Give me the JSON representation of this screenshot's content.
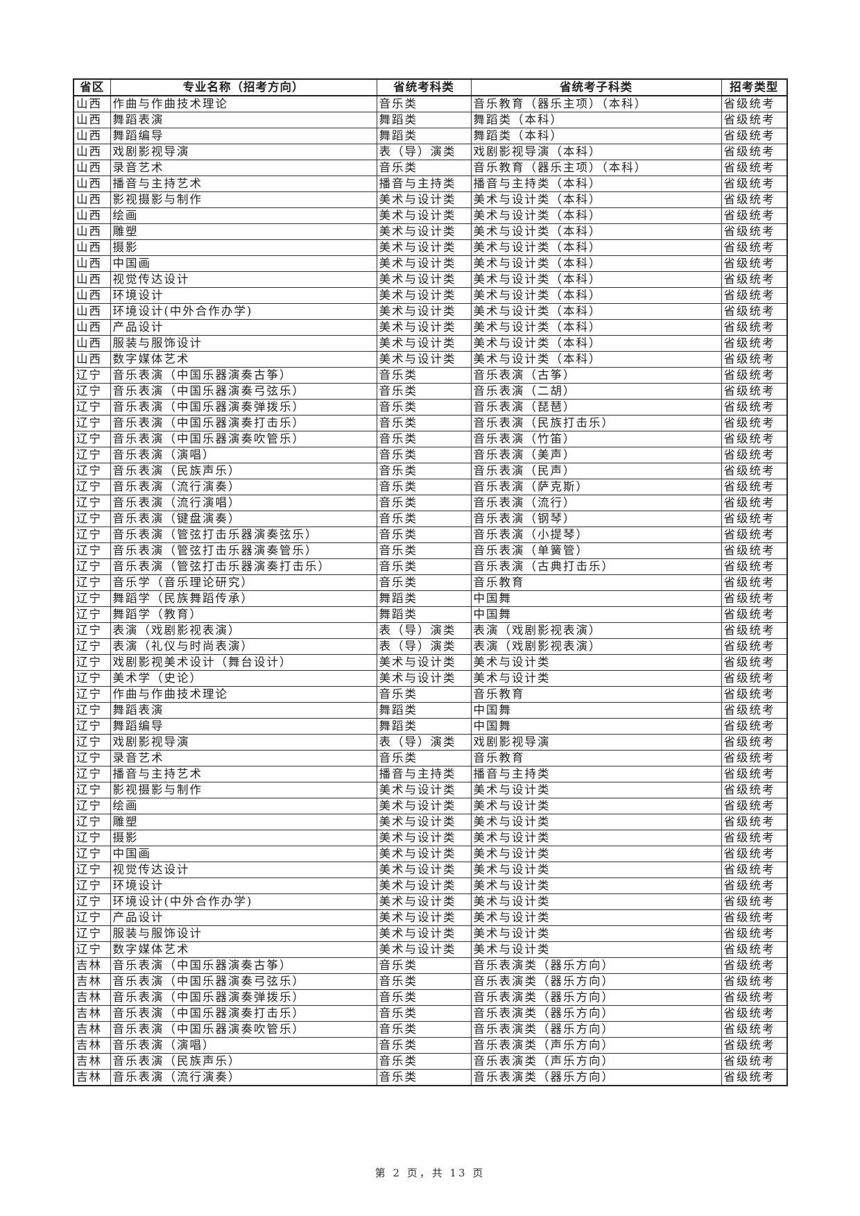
{
  "table": {
    "headers": [
      "省区",
      "专业名称（招考方向）",
      "省统考科类",
      "省统考子科类",
      "招考类型"
    ],
    "rows": [
      [
        "山西",
        "作曲与作曲技术理论",
        "音乐类",
        "音乐教育（器乐主项）（本科）",
        "省级统考"
      ],
      [
        "山西",
        "舞蹈表演",
        "舞蹈类",
        "舞蹈类（本科）",
        "省级统考"
      ],
      [
        "山西",
        "舞蹈编导",
        "舞蹈类",
        "舞蹈类（本科）",
        "省级统考"
      ],
      [
        "山西",
        "戏剧影视导演",
        "表（导）演类",
        "戏剧影视导演（本科）",
        "省级统考"
      ],
      [
        "山西",
        "录音艺术",
        "音乐类",
        "音乐教育（器乐主项）（本科）",
        "省级统考"
      ],
      [
        "山西",
        "播音与主持艺术",
        "播音与主持类",
        "播音与主持类（本科）",
        "省级统考"
      ],
      [
        "山西",
        "影视摄影与制作",
        "美术与设计类",
        "美术与设计类（本科）",
        "省级统考"
      ],
      [
        "山西",
        "绘画",
        "美术与设计类",
        "美术与设计类（本科）",
        "省级统考"
      ],
      [
        "山西",
        "雕塑",
        "美术与设计类",
        "美术与设计类（本科）",
        "省级统考"
      ],
      [
        "山西",
        "摄影",
        "美术与设计类",
        "美术与设计类（本科）",
        "省级统考"
      ],
      [
        "山西",
        "中国画",
        "美术与设计类",
        "美术与设计类（本科）",
        "省级统考"
      ],
      [
        "山西",
        "视觉传达设计",
        "美术与设计类",
        "美术与设计类（本科）",
        "省级统考"
      ],
      [
        "山西",
        "环境设计",
        "美术与设计类",
        "美术与设计类（本科）",
        "省级统考"
      ],
      [
        "山西",
        "环境设计(中外合作办学)",
        "美术与设计类",
        "美术与设计类（本科）",
        "省级统考"
      ],
      [
        "山西",
        "产品设计",
        "美术与设计类",
        "美术与设计类（本科）",
        "省级统考"
      ],
      [
        "山西",
        "服装与服饰设计",
        "美术与设计类",
        "美术与设计类（本科）",
        "省级统考"
      ],
      [
        "山西",
        "数字媒体艺术",
        "美术与设计类",
        "美术与设计类（本科）",
        "省级统考"
      ],
      [
        "辽宁",
        "音乐表演（中国乐器演奏古筝）",
        "音乐类",
        "音乐表演（古筝）",
        "省级统考"
      ],
      [
        "辽宁",
        "音乐表演（中国乐器演奏弓弦乐）",
        "音乐类",
        "音乐表演（二胡）",
        "省级统考"
      ],
      [
        "辽宁",
        "音乐表演（中国乐器演奏弹拨乐）",
        "音乐类",
        "音乐表演（琵琶）",
        "省级统考"
      ],
      [
        "辽宁",
        "音乐表演（中国乐器演奏打击乐）",
        "音乐类",
        "音乐表演（民族打击乐）",
        "省级统考"
      ],
      [
        "辽宁",
        "音乐表演（中国乐器演奏吹管乐）",
        "音乐类",
        "音乐表演（竹笛）",
        "省级统考"
      ],
      [
        "辽宁",
        "音乐表演（演唱）",
        "音乐类",
        "音乐表演（美声）",
        "省级统考"
      ],
      [
        "辽宁",
        "音乐表演（民族声乐）",
        "音乐类",
        "音乐表演（民声）",
        "省级统考"
      ],
      [
        "辽宁",
        "音乐表演（流行演奏）",
        "音乐类",
        "音乐表演（萨克斯）",
        "省级统考"
      ],
      [
        "辽宁",
        "音乐表演（流行演唱）",
        "音乐类",
        "音乐表演（流行）",
        "省级统考"
      ],
      [
        "辽宁",
        "音乐表演（键盘演奏）",
        "音乐类",
        "音乐表演（钢琴）",
        "省级统考"
      ],
      [
        "辽宁",
        "音乐表演（管弦打击乐器演奏弦乐）",
        "音乐类",
        "音乐表演（小提琴）",
        "省级统考"
      ],
      [
        "辽宁",
        "音乐表演（管弦打击乐器演奏管乐）",
        "音乐类",
        "音乐表演（单簧管）",
        "省级统考"
      ],
      [
        "辽宁",
        "音乐表演（管弦打击乐器演奏打击乐）",
        "音乐类",
        "音乐表演（古典打击乐）",
        "省级统考"
      ],
      [
        "辽宁",
        "音乐学（音乐理论研究）",
        "音乐类",
        "音乐教育",
        "省级统考"
      ],
      [
        "辽宁",
        "舞蹈学（民族舞蹈传承）",
        "舞蹈类",
        "中国舞",
        "省级统考"
      ],
      [
        "辽宁",
        "舞蹈学（教育）",
        "舞蹈类",
        "中国舞",
        "省级统考"
      ],
      [
        "辽宁",
        "表演（戏剧影视表演）",
        "表（导）演类",
        "表演（戏剧影视表演）",
        "省级统考"
      ],
      [
        "辽宁",
        "表演（礼仪与时尚表演）",
        "表（导）演类",
        "表演（戏剧影视表演）",
        "省级统考"
      ],
      [
        "辽宁",
        "戏剧影视美术设计（舞台设计）",
        "美术与设计类",
        "美术与设计类",
        "省级统考"
      ],
      [
        "辽宁",
        "美术学（史论）",
        "美术与设计类",
        "美术与设计类",
        "省级统考"
      ],
      [
        "辽宁",
        "作曲与作曲技术理论",
        "音乐类",
        "音乐教育",
        "省级统考"
      ],
      [
        "辽宁",
        "舞蹈表演",
        "舞蹈类",
        "中国舞",
        "省级统考"
      ],
      [
        "辽宁",
        "舞蹈编导",
        "舞蹈类",
        "中国舞",
        "省级统考"
      ],
      [
        "辽宁",
        "戏剧影视导演",
        "表（导）演类",
        "戏剧影视导演",
        "省级统考"
      ],
      [
        "辽宁",
        "录音艺术",
        "音乐类",
        "音乐教育",
        "省级统考"
      ],
      [
        "辽宁",
        "播音与主持艺术",
        "播音与主持类",
        "播音与主持类",
        "省级统考"
      ],
      [
        "辽宁",
        "影视摄影与制作",
        "美术与设计类",
        "美术与设计类",
        "省级统考"
      ],
      [
        "辽宁",
        "绘画",
        "美术与设计类",
        "美术与设计类",
        "省级统考"
      ],
      [
        "辽宁",
        "雕塑",
        "美术与设计类",
        "美术与设计类",
        "省级统考"
      ],
      [
        "辽宁",
        "摄影",
        "美术与设计类",
        "美术与设计类",
        "省级统考"
      ],
      [
        "辽宁",
        "中国画",
        "美术与设计类",
        "美术与设计类",
        "省级统考"
      ],
      [
        "辽宁",
        "视觉传达设计",
        "美术与设计类",
        "美术与设计类",
        "省级统考"
      ],
      [
        "辽宁",
        "环境设计",
        "美术与设计类",
        "美术与设计类",
        "省级统考"
      ],
      [
        "辽宁",
        "环境设计(中外合作办学)",
        "美术与设计类",
        "美术与设计类",
        "省级统考"
      ],
      [
        "辽宁",
        "产品设计",
        "美术与设计类",
        "美术与设计类",
        "省级统考"
      ],
      [
        "辽宁",
        "服装与服饰设计",
        "美术与设计类",
        "美术与设计类",
        "省级统考"
      ],
      [
        "辽宁",
        "数字媒体艺术",
        "美术与设计类",
        "美术与设计类",
        "省级统考"
      ],
      [
        "吉林",
        "音乐表演（中国乐器演奏古筝）",
        "音乐类",
        "音乐表演类（器乐方向）",
        "省级统考"
      ],
      [
        "吉林",
        "音乐表演（中国乐器演奏弓弦乐）",
        "音乐类",
        "音乐表演类（器乐方向）",
        "省级统考"
      ],
      [
        "吉林",
        "音乐表演（中国乐器演奏弹拨乐）",
        "音乐类",
        "音乐表演类（器乐方向）",
        "省级统考"
      ],
      [
        "吉林",
        "音乐表演（中国乐器演奏打击乐）",
        "音乐类",
        "音乐表演类（器乐方向）",
        "省级统考"
      ],
      [
        "吉林",
        "音乐表演（中国乐器演奏吹管乐）",
        "音乐类",
        "音乐表演类（器乐方向）",
        "省级统考"
      ],
      [
        "吉林",
        "音乐表演（演唱）",
        "音乐类",
        "音乐表演类（声乐方向）",
        "省级统考"
      ],
      [
        "吉林",
        "音乐表演（民族声乐）",
        "音乐类",
        "音乐表演类（声乐方向）",
        "省级统考"
      ],
      [
        "吉林",
        "音乐表演（流行演奏）",
        "音乐类",
        "音乐表演类（器乐方向）",
        "省级统考"
      ]
    ]
  },
  "footer": {
    "page_label": "第 2 页，共 13 页"
  }
}
